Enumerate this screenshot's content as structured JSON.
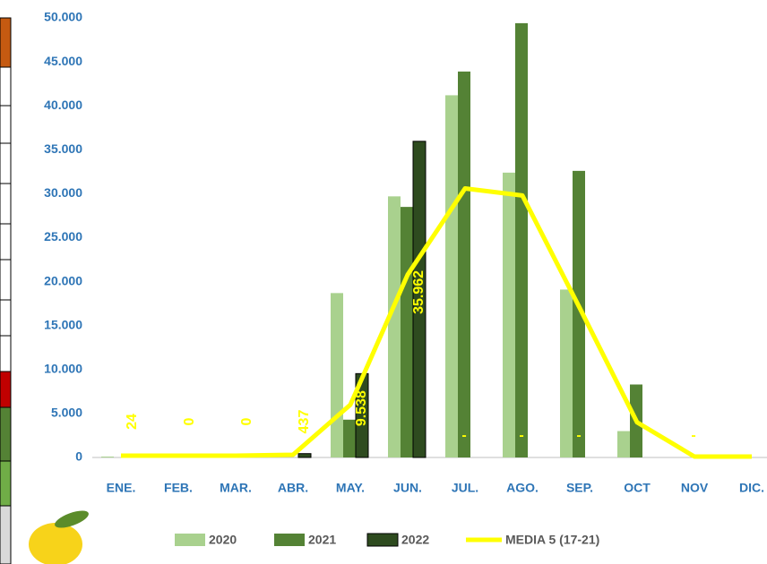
{
  "chart_data": {
    "type": "bar",
    "categories": [
      "ENE.",
      "FEB.",
      "MAR.",
      "ABR.",
      "MAY.",
      "JUN.",
      "JUL.",
      "AGO.",
      "SEP.",
      "OCT",
      "NOV",
      "DIC."
    ],
    "series": [
      {
        "name": "2020",
        "color": "#a9d18e",
        "values": [
          100,
          0,
          0,
          0,
          18700,
          29700,
          41200,
          32400,
          19100,
          3000,
          0,
          0
        ]
      },
      {
        "name": "2021",
        "color": "#548235",
        "values": [
          0,
          0,
          0,
          0,
          4300,
          28500,
          43900,
          49400,
          32600,
          8300,
          0,
          0
        ]
      },
      {
        "name": "2022",
        "color": "#2e4b1f",
        "values": [
          24,
          0,
          0,
          437,
          9538,
          35962,
          null,
          null,
          null,
          null,
          null,
          null
        ],
        "value_labels": [
          "24",
          "0",
          "0",
          "437",
          "9.538",
          "35.962",
          "-",
          "-",
          "-",
          null,
          "-",
          null
        ]
      },
      {
        "name": "MEDIA 5 (17-21)",
        "color": "#ffff00",
        "type": "line",
        "values": [
          200,
          200,
          200,
          300,
          6000,
          20800,
          30600,
          29800,
          17000,
          4000,
          100,
          100
        ]
      }
    ],
    "ylim": [
      0,
      50000
    ],
    "yticks": [
      {
        "value": 0,
        "label": "0"
      },
      {
        "value": 5000,
        "label": "5.000"
      },
      {
        "value": 10000,
        "label": "10.000"
      },
      {
        "value": 15000,
        "label": "15.000"
      },
      {
        "value": 20000,
        "label": "20.000"
      },
      {
        "value": 25000,
        "label": "25.000"
      },
      {
        "value": 30000,
        "label": "30.000"
      },
      {
        "value": 35000,
        "label": "35.000"
      },
      {
        "value": 40000,
        "label": "40.000"
      },
      {
        "value": 45000,
        "label": "45.000"
      },
      {
        "value": 50000,
        "label": "50.000"
      }
    ],
    "grid": false,
    "legend": "bottom"
  }
}
